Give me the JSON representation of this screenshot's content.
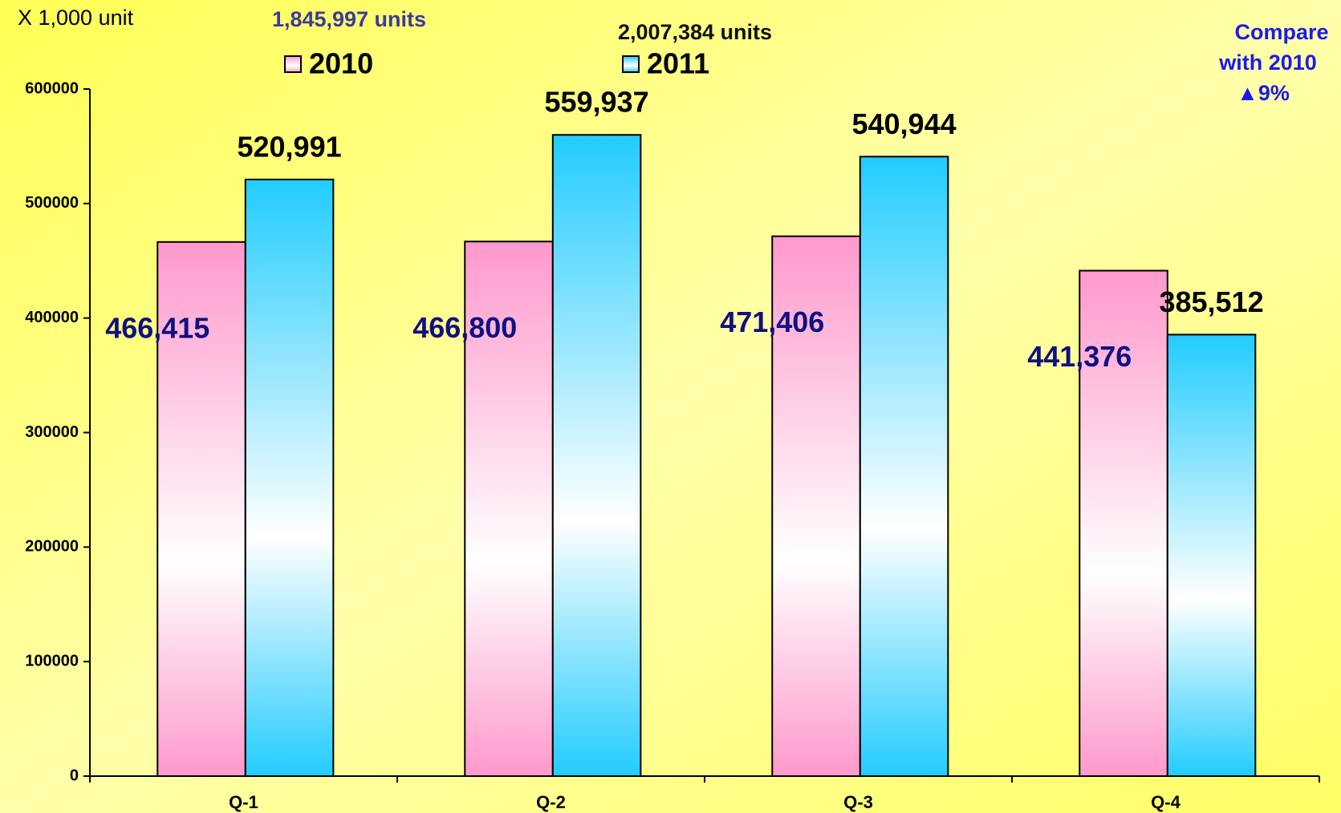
{
  "chart_data": {
    "type": "bar",
    "categories": [
      "Q-1",
      "Q-2",
      "Q-3",
      "Q-4"
    ],
    "series": [
      {
        "name": "2010",
        "color": "#ff99cc",
        "values": [
          466415,
          466800,
          471406,
          441376
        ],
        "value_labels": [
          "466,415",
          "466,800",
          "471,406",
          "441,376"
        ]
      },
      {
        "name": "2011",
        "color": "#22ccff",
        "values": [
          520991,
          559937,
          540944,
          385512
        ],
        "value_labels": [
          "520,991",
          "559,937",
          "540,944",
          "385,512"
        ]
      }
    ],
    "ylim": [
      0,
      600000
    ],
    "yticks": [
      0,
      100000,
      200000,
      300000,
      400000,
      500000,
      600000
    ],
    "annotations": [
      "X 1,000 unit",
      "1,845,997 units",
      "2,007,384 units",
      "Compare",
      "with  2010",
      "▲9%"
    ],
    "grid": false
  }
}
